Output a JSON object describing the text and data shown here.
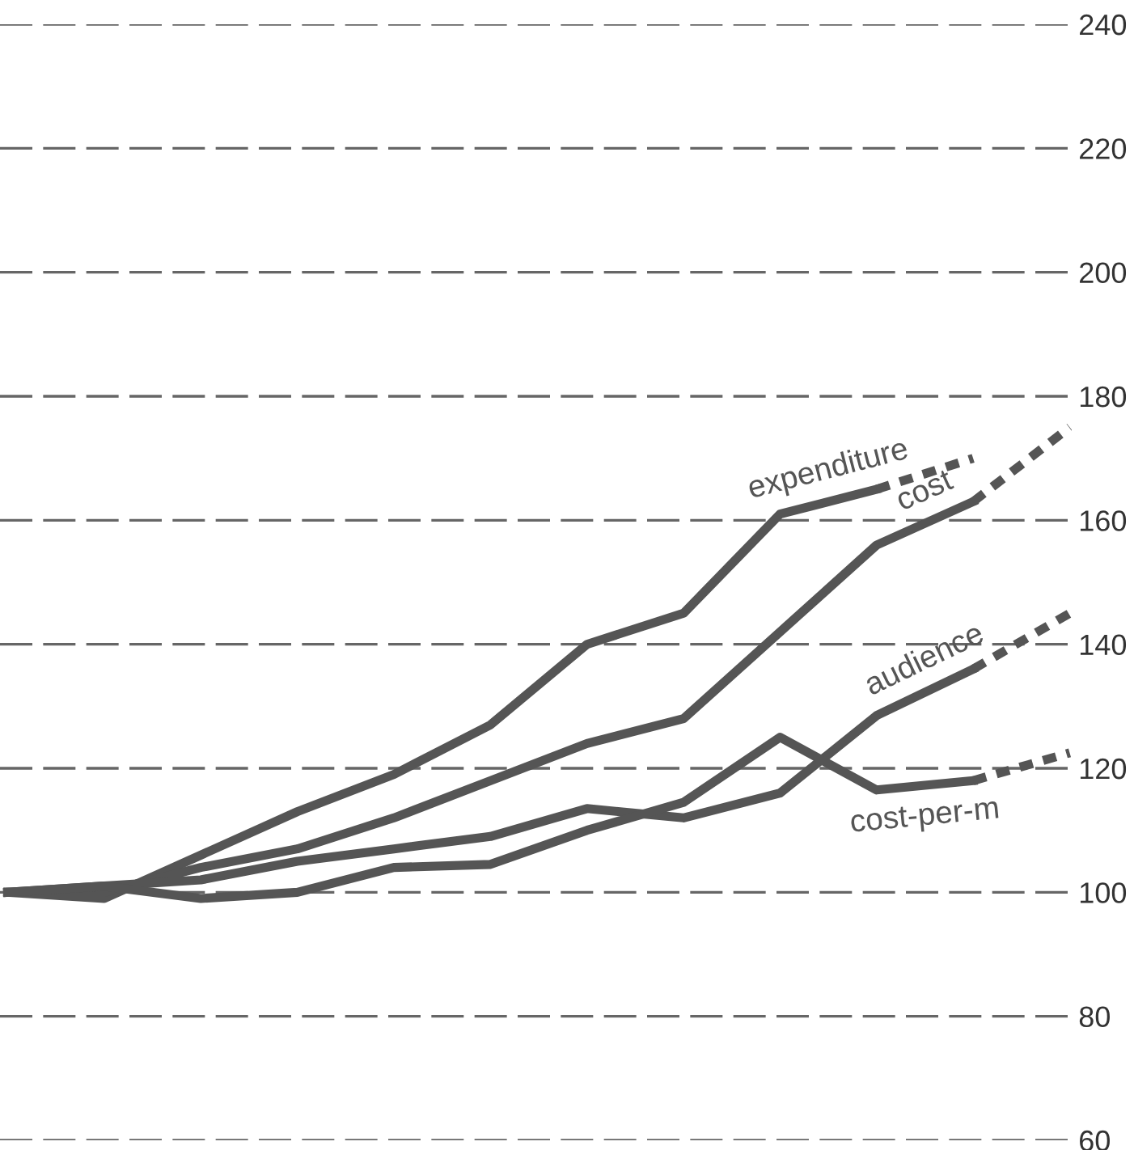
{
  "chart_data": {
    "type": "line",
    "categories": [
      null,
      null,
      null,
      null,
      null,
      null,
      null,
      null,
      null,
      null,
      null,
      null
    ],
    "series": [
      {
        "name": "expenditure",
        "color": "#555555",
        "line_style": "solid",
        "values": [
          100,
          99,
          106,
          113,
          119,
          127,
          140,
          145,
          161,
          165,
          null,
          null
        ]
      },
      {
        "color": "#555555",
        "line_style": "dashed",
        "values": [
          null,
          null,
          null,
          null,
          null,
          null,
          null,
          null,
          null,
          165,
          170,
          null
        ]
      },
      {
        "name": "cost",
        "color": "#555555",
        "line_style": "solid",
        "values": [
          100,
          100,
          104,
          107,
          112,
          118,
          124,
          128,
          142,
          156,
          163,
          null
        ]
      },
      {
        "color": "#555555",
        "line_style": "dashed",
        "values": [
          null,
          null,
          null,
          null,
          null,
          null,
          null,
          null,
          null,
          null,
          163,
          175
        ]
      },
      {
        "name": "audience",
        "color": "#555555",
        "line_style": "solid",
        "values": [
          100,
          101,
          102,
          105,
          107,
          109,
          113.5,
          112,
          116,
          128.5,
          136,
          null
        ]
      },
      {
        "color": "#555555",
        "line_style": "dashed",
        "values": [
          null,
          null,
          null,
          null,
          null,
          null,
          null,
          null,
          null,
          null,
          136,
          145
        ]
      },
      {
        "name": "cost-per-m",
        "color": "#555555",
        "line_style": "solid",
        "values": [
          100,
          101,
          99,
          100,
          104,
          104.5,
          110,
          114.5,
          125,
          116.5,
          118,
          null
        ]
      },
      {
        "color": "#555555",
        "line_style": "dashed",
        "values": [
          null,
          null,
          null,
          null,
          null,
          null,
          null,
          null,
          null,
          null,
          118,
          122.5
        ]
      }
    ],
    "ylim": [
      60,
      240
    ],
    "yticks": [
      60,
      80,
      100,
      120,
      140,
      160,
      180,
      200,
      220,
      240
    ],
    "grid": "y",
    "legend": false,
    "tick_labels": "y",
    "marker": "none"
  }
}
